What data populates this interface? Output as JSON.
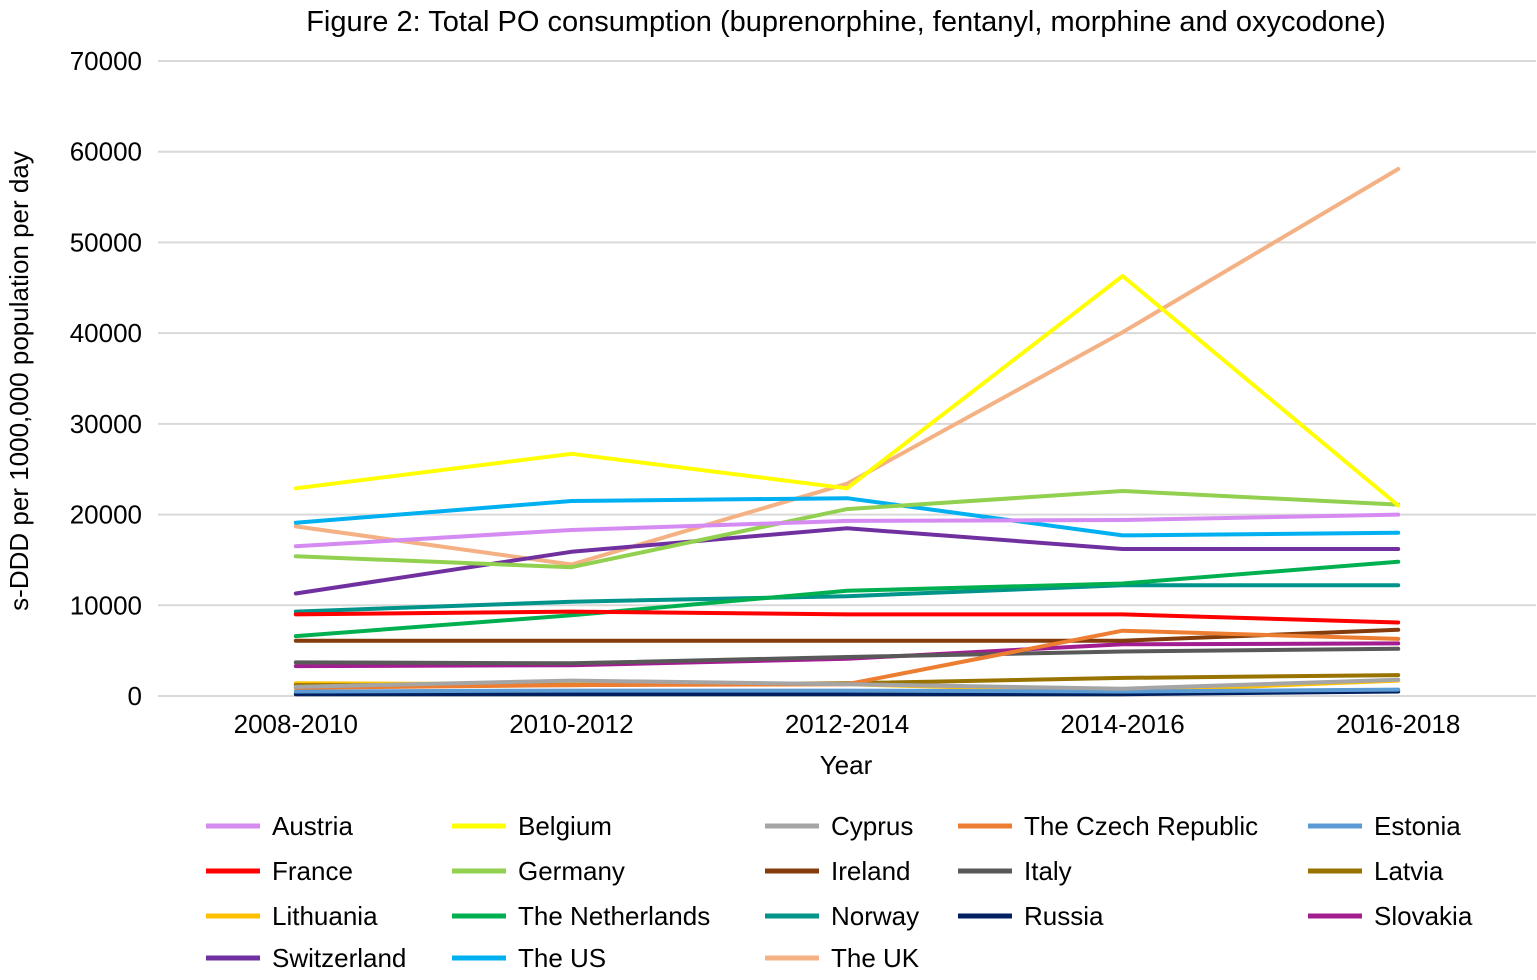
{
  "chart_data": {
    "type": "line",
    "title": "Figure 2: Total PO consumption (buprenorphine, fentanyl, morphine and oxycodone)",
    "xlabel": "Year",
    "ylabel": "s-DDD per 1000,000 population per day",
    "ylim": [
      0,
      70000
    ],
    "yticks": [
      0,
      10000,
      20000,
      30000,
      40000,
      50000,
      60000,
      70000
    ],
    "grid": true,
    "legend_position": "bottom",
    "categories": [
      "2008-2010",
      "2010-2012",
      "2012-2014",
      "2014-2016",
      "2016-2018"
    ],
    "series": [
      {
        "name": "Austria",
        "color": "#d58bf2",
        "values": [
          16500,
          18300,
          19300,
          19400,
          20000
        ]
      },
      {
        "name": "Belgium",
        "color": "#ffff00",
        "values": [
          22900,
          26700,
          22900,
          46300,
          21000
        ]
      },
      {
        "name": "Cyprus",
        "color": "#a5a5a5",
        "values": [
          1000,
          1700,
          1300,
          800,
          1800
        ]
      },
      {
        "name": "The Czech Republic",
        "color": "#ed7d31",
        "values": [
          900,
          1200,
          1300,
          7200,
          6300
        ]
      },
      {
        "name": "Estonia",
        "color": "#5b9bd5",
        "values": [
          500,
          600,
          600,
          500,
          700
        ]
      },
      {
        "name": "France",
        "color": "#ff0000",
        "values": [
          9000,
          9300,
          9000,
          9000,
          8100
        ]
      },
      {
        "name": "Germany",
        "color": "#92d050",
        "values": [
          15400,
          14200,
          20600,
          22600,
          21100
        ]
      },
      {
        "name": "Ireland",
        "color": "#843c0c",
        "values": [
          6100,
          6100,
          6100,
          6100,
          7300
        ]
      },
      {
        "name": "Italy",
        "color": "#595959",
        "values": [
          3700,
          3600,
          4300,
          4900,
          5200
        ]
      },
      {
        "name": "Latvia",
        "color": "#997300",
        "values": [
          1200,
          1200,
          1400,
          2000,
          2300
        ]
      },
      {
        "name": "Lithuania",
        "color": "#ffc000",
        "values": [
          1400,
          1300,
          1300,
          500,
          1700
        ]
      },
      {
        "name": "The Netherlands",
        "color": "#00b050",
        "values": [
          6600,
          8900,
          11600,
          12400,
          14800
        ]
      },
      {
        "name": "Norway",
        "color": "#00948a",
        "values": [
          9300,
          10400,
          11000,
          12200,
          12200
        ]
      },
      {
        "name": "Russia",
        "color": "#002060",
        "values": [
          200,
          200,
          200,
          200,
          500
        ]
      },
      {
        "name": "Slovakia",
        "color": "#a21d8f",
        "values": [
          3300,
          3400,
          4100,
          5700,
          5800
        ]
      },
      {
        "name": "Switzerland",
        "color": "#7030a0",
        "values": [
          11300,
          15900,
          18500,
          16200,
          16200
        ]
      },
      {
        "name": "The US",
        "color": "#00b0f0",
        "values": [
          19100,
          21500,
          21800,
          17700,
          18000
        ]
      },
      {
        "name": "The UK",
        "color": "#f4b183",
        "values": [
          18700,
          14500,
          23400,
          40100,
          58100
        ]
      }
    ]
  }
}
